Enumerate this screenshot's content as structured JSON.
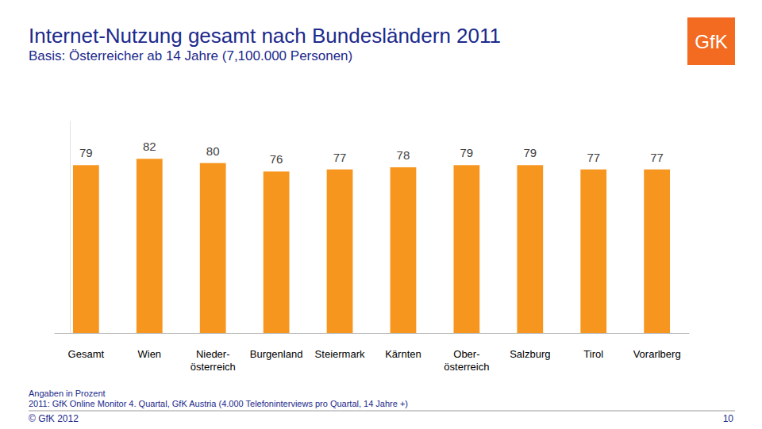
{
  "chart_data": {
    "type": "bar",
    "title": "Internet-Nutzung gesamt nach Bundesländern 2011",
    "subtitle": "Basis: Österreicher ab 14 Jahre (7,100.000 Personen)",
    "categories": [
      "Gesamt",
      "Wien",
      "Nieder-\nösterreich",
      "Burgenland",
      "Steiermark",
      "Kärnten",
      "Ober-\nösterreich",
      "Salzburg",
      "Tirol",
      "Vorarlberg"
    ],
    "values": [
      79,
      82,
      80,
      76,
      77,
      78,
      79,
      79,
      77,
      77
    ],
    "color": "#f7961e",
    "ylim": [
      0,
      100
    ],
    "tick_labels": "x",
    "data_labels": true,
    "grid": false,
    "annotations": [
      "Angaben in Prozent",
      "2011: GfK Online Monitor 4. Quartal, GfK Austria (4.000 Telefoninterviews pro Quartal, 14 Jahre +)",
      "© GfK 2012",
      "10",
      "GfK"
    ]
  }
}
